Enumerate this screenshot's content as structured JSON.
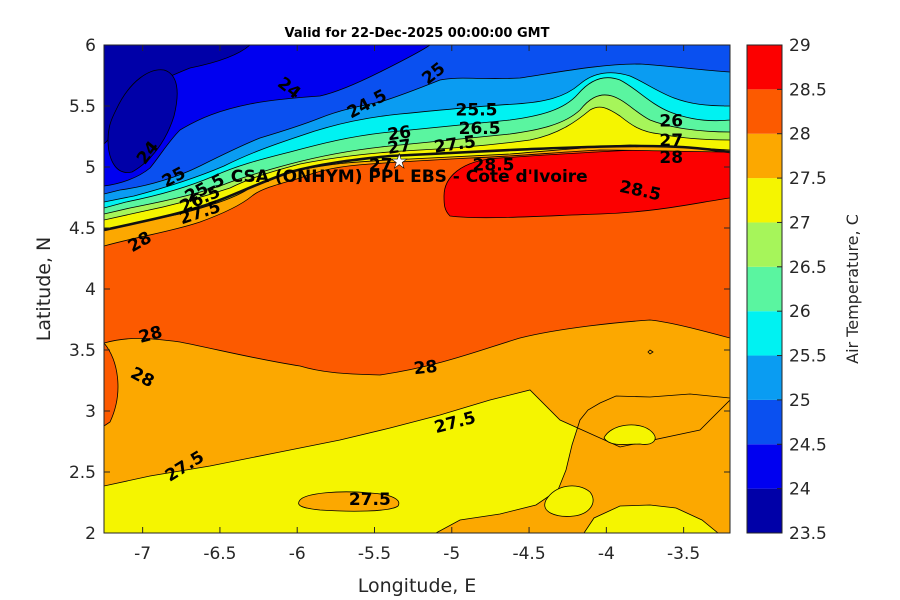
{
  "chart_data": {
    "type": "contour",
    "title": "Valid for 22-Dec-2025 00:00:00 GMT",
    "xlabel": "Longitude, E",
    "ylabel": "Latitude, N",
    "colorbar_label": "Air Temperature, C",
    "xlim": [
      -7.25,
      -3.2
    ],
    "ylim": [
      2,
      6
    ],
    "xticks": [
      -7,
      -6.5,
      -6,
      -5.5,
      -5,
      -4.5,
      -4,
      -3.5
    ],
    "xtick_labels": [
      "-7",
      "-6.5",
      "-6",
      "-5.5",
      "-5",
      "-4.5",
      "-4",
      "-3.5"
    ],
    "yticks": [
      2,
      2.5,
      3,
      3.5,
      4,
      4.5,
      5,
      5.5,
      6
    ],
    "ytick_labels": [
      "2",
      "2.5",
      "3",
      "3.5",
      "4",
      "4.5",
      "5",
      "5.5",
      "6"
    ],
    "colorbar": {
      "levels": [
        23.5,
        24,
        24.5,
        25,
        25.5,
        26,
        26.5,
        27,
        27.5,
        28,
        28.5,
        29
      ],
      "tick_labels": [
        "23.5",
        "24",
        "24.5",
        "25",
        "25.5",
        "26",
        "26.5",
        "27",
        "27.5",
        "28",
        "28.5",
        "29"
      ],
      "colors": [
        "#0000a8",
        "#0000f0",
        "#0a50f0",
        "#0a9cf2",
        "#00f2f2",
        "#5af5a0",
        "#a6f55a",
        "#f5f500",
        "#fca800",
        "#fc5a00",
        "#fc0000",
        "#a80000"
      ]
    },
    "station": {
      "name": "CSA (ONHYM) PPL EBS - Cote d'Ivoire",
      "lon": -5.34,
      "lat": 5.05
    },
    "contour_labels": [
      {
        "text": "24",
        "lon": -6.05,
        "lat": 5.65,
        "angle": 38
      },
      {
        "text": "24",
        "lon": -6.97,
        "lat": 5.12,
        "angle": -52
      },
      {
        "text": "24.5",
        "lon": -5.55,
        "lat": 5.52,
        "angle": -28
      },
      {
        "text": "25",
        "lon": -5.12,
        "lat": 5.77,
        "angle": -38
      },
      {
        "text": "25",
        "lon": -6.8,
        "lat": 4.92,
        "angle": -28
      },
      {
        "text": "25.5",
        "lon": -4.84,
        "lat": 5.47,
        "angle": 0
      },
      {
        "text": "25.5",
        "lon": -6.6,
        "lat": 4.83,
        "angle": -28
      },
      {
        "text": "26",
        "lon": -5.34,
        "lat": 5.28,
        "angle": -8
      },
      {
        "text": "26",
        "lon": -3.58,
        "lat": 5.38,
        "angle": 0
      },
      {
        "text": "26.5",
        "lon": -4.82,
        "lat": 5.32,
        "angle": 0
      },
      {
        "text": "26.5",
        "lon": -6.63,
        "lat": 4.74,
        "angle": -24
      },
      {
        "text": "27",
        "lon": -5.34,
        "lat": 5.17,
        "angle": -8
      },
      {
        "text": "27",
        "lon": -3.58,
        "lat": 5.22,
        "angle": 0
      },
      {
        "text": "27",
        "lon": -5.46,
        "lat": 5.02,
        "angle": 0
      },
      {
        "text": "27.5",
        "lon": -4.98,
        "lat": 5.19,
        "angle": -8
      },
      {
        "text": "27.5",
        "lon": -6.63,
        "lat": 4.63,
        "angle": -18
      },
      {
        "text": "28",
        "lon": -3.58,
        "lat": 5.08,
        "angle": 0
      },
      {
        "text": "28",
        "lon": -7.02,
        "lat": 4.39,
        "angle": -30
      },
      {
        "text": "28",
        "lon": -6.95,
        "lat": 3.63,
        "angle": -15
      },
      {
        "text": "28",
        "lon": -7.0,
        "lat": 3.28,
        "angle": 28
      },
      {
        "text": "28",
        "lon": -5.17,
        "lat": 3.36,
        "angle": -6
      },
      {
        "text": "28.5",
        "lon": -4.73,
        "lat": 5.02,
        "angle": 0
      },
      {
        "text": "28.5",
        "lon": -3.78,
        "lat": 4.81,
        "angle": 12
      },
      {
        "text": "27.5",
        "lon": -4.98,
        "lat": 2.91,
        "angle": -15
      },
      {
        "text": "27.5",
        "lon": -6.73,
        "lat": 2.55,
        "angle": -32
      },
      {
        "text": "27.5",
        "lon": -5.53,
        "lat": 2.28,
        "angle": 0
      }
    ]
  }
}
